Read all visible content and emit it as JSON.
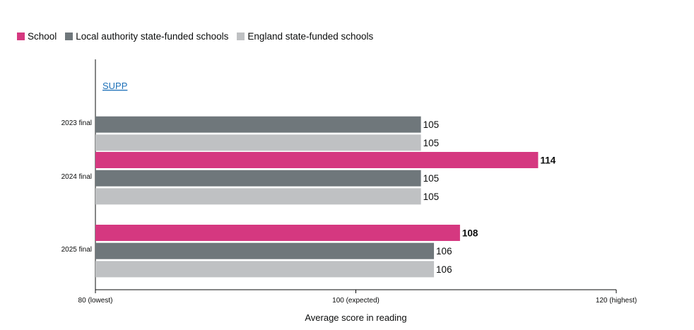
{
  "legend": [
    {
      "label": "School",
      "color": "#d53880"
    },
    {
      "label": "Local authority state-funded schools",
      "color": "#6f777b"
    },
    {
      "label": "England state-funded schools",
      "color": "#bfc1c3"
    }
  ],
  "chart_data": {
    "type": "bar",
    "orientation": "horizontal",
    "categories": [
      "2023 final",
      "2024 final",
      "2025 final"
    ],
    "series": [
      {
        "name": "School",
        "color": "#d53880",
        "values": [
          null,
          114,
          108
        ],
        "display": [
          "SUPP",
          "114",
          "108"
        ]
      },
      {
        "name": "Local authority state-funded schools",
        "color": "#6f777b",
        "values": [
          105,
          105,
          106
        ],
        "display": [
          "105",
          "105",
          "106"
        ]
      },
      {
        "name": "England state-funded schools",
        "color": "#bfc1c3",
        "values": [
          105,
          105,
          106
        ],
        "display": [
          "105",
          "105",
          "106"
        ]
      }
    ],
    "xlim": [
      80,
      120
    ],
    "xticks": [
      {
        "value": 80,
        "label": "80 (lowest)"
      },
      {
        "value": 100,
        "label": "100 (expected)"
      },
      {
        "value": 120,
        "label": "120 (highest)"
      }
    ],
    "xlabel": "Average score in reading",
    "grid": false,
    "legend_position": "top-left"
  }
}
